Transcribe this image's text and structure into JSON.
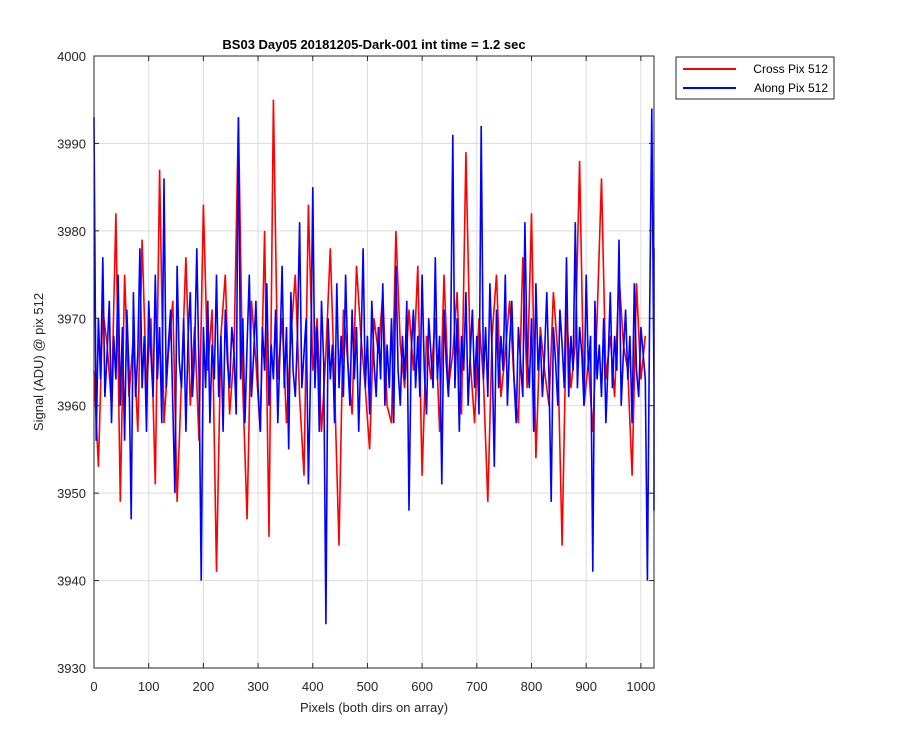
{
  "chart_data": {
    "type": "line",
    "title": "BS03 Day05 20181205-Dark-001 int time = 1.2 sec",
    "xlabel": "Pixels (both dirs on array)",
    "ylabel": "Signal (ADU) @ pix 512",
    "xlim": [
      0,
      1024
    ],
    "ylim": [
      3930,
      4000
    ],
    "xticks": [
      0,
      100,
      200,
      300,
      400,
      500,
      600,
      700,
      800,
      900,
      1000
    ],
    "yticks": [
      3930,
      3940,
      3950,
      3960,
      3970,
      3980,
      3990,
      4000
    ],
    "xtick_labels": [
      "0",
      "100",
      "200",
      "300",
      "400",
      "500",
      "600",
      "700",
      "800",
      "900",
      "1000"
    ],
    "ytick_labels": [
      "3930",
      "3940",
      "3950",
      "3960",
      "3970",
      "3980",
      "3990",
      "4000"
    ],
    "grid": true,
    "legend_position": "outside-top-right",
    "series": [
      {
        "name": "Cross Pix 512",
        "color": "#ff0000",
        "x_step": 8,
        "values": [
          3964,
          3953,
          3971,
          3967,
          3960,
          3982,
          3949,
          3975,
          3961,
          3968,
          3957,
          3979,
          3962,
          3970,
          3951,
          3987,
          3958,
          3966,
          3972,
          3949,
          3963,
          3977,
          3960,
          3969,
          3956,
          3983,
          3964,
          3971,
          3941,
          3968,
          3975,
          3959,
          3966,
          3993,
          3962,
          3947,
          3972,
          3965,
          3957,
          3980,
          3945,
          3995,
          3963,
          3970,
          3958,
          3968,
          3975,
          3961,
          3952,
          3983,
          3964,
          3970,
          3957,
          3966,
          3978,
          3962,
          3944,
          3971,
          3965,
          3959,
          3976,
          3968,
          3962,
          3955,
          3970,
          3966,
          3973,
          3960,
          3958,
          3980,
          3967,
          3962,
          3971,
          3964,
          3976,
          3952,
          3968,
          3963,
          3970,
          3957,
          3975,
          3962,
          3966,
          3973,
          3959,
          3989,
          3965,
          3958,
          3970,
          3963,
          3949,
          3968,
          3975,
          3961,
          3966,
          3972,
          3963,
          3958,
          3977,
          3962,
          3982,
          3954,
          3969,
          3964,
          3960,
          3973,
          3966,
          3944,
          3971,
          3962,
          3967,
          3988,
          3960,
          3965,
          3957,
          3970,
          3986,
          3963,
          3968,
          3961,
          3975,
          3967,
          3964,
          3952,
          3974,
          3963,
          3968
        ]
      },
      {
        "name": "Along Pix 512",
        "color": "#0000ff",
        "x_step": 4,
        "values": [
          3993,
          3956,
          3970,
          3963,
          3977,
          3961,
          3966,
          3972,
          3958,
          3968,
          3963,
          3975,
          3960,
          3969,
          3956,
          3971,
          3964,
          3947,
          3973,
          3961,
          3966,
          3978,
          3962,
          3968,
          3957,
          3972,
          3966,
          3961,
          3975,
          3963,
          3969,
          3958,
          3986,
          3962,
          3967,
          3971,
          3960,
          3950,
          3976,
          3965,
          3962,
          3970,
          3957,
          3968,
          3973,
          3961,
          3966,
          3978,
          3964,
          3940,
          3969,
          3962,
          3972,
          3958,
          3967,
          3963,
          3975,
          3961,
          3968,
          3957,
          3971,
          3965,
          3962,
          3969,
          3966,
          3959,
          3993,
          3963,
          3970,
          3958,
          3967,
          3975,
          3961,
          3966,
          3972,
          3962,
          3957,
          3969,
          3964,
          3974,
          3960,
          3967,
          3963,
          3971,
          3958,
          3966,
          3976,
          3962,
          3969,
          3955,
          3973,
          3964,
          3961,
          3968,
          3981,
          3962,
          3966,
          3970,
          3951,
          3964,
          3985,
          3962,
          3969,
          3957,
          3972,
          3965,
          3935,
          3970,
          3963,
          3967,
          3958,
          3974,
          3962,
          3968,
          3961,
          3975,
          3965,
          3960,
          3971,
          3963,
          3969,
          3957,
          3966,
          3978,
          3962,
          3968,
          3959,
          3972,
          3965,
          3961,
          3969,
          3963,
          3974,
          3960,
          3967,
          3962,
          3970,
          3958,
          3976,
          3964,
          3960,
          3968,
          3963,
          3972,
          3948,
          3966,
          3971,
          3962,
          3968,
          3961,
          3975,
          3964,
          3959,
          3970,
          3966,
          3962,
          3977,
          3963,
          3968,
          3951,
          3971,
          3965,
          3961,
          3967,
          3991,
          3962,
          3970,
          3957,
          3968,
          3964,
          3973,
          3960,
          3966,
          3971,
          3962,
          3968,
          3959,
          3992,
          3963,
          3969,
          3961,
          3974,
          3966,
          3953,
          3971,
          3962,
          3968,
          3964,
          3975,
          3960,
          3967,
          3972,
          3963,
          3958,
          3969,
          3965,
          3961,
          3981,
          3966,
          3962,
          3970,
          3957,
          3974,
          3964,
          3968,
          3961,
          3966,
          3973,
          3963,
          3949,
          3969,
          3965,
          3960,
          3971,
          3967,
          3962,
          3977,
          3961,
          3968,
          3964,
          3981,
          3962,
          3969,
          3966,
          3960,
          3975,
          3964,
          3968,
          3941,
          3972,
          3963,
          3967,
          3961,
          3970,
          3958,
          3965,
          3973,
          3962,
          3968,
          3964,
          3979,
          3960,
          3966,
          3971,
          3963,
          3968,
          3958,
          3974,
          3964,
          3961,
          3969,
          3966,
          3963,
          3940,
          3970,
          3994,
          3962,
          3968,
          3961,
          3974,
          3965,
          3960,
          3969,
          3963,
          3976,
          3961,
          3967,
          3972,
          3958,
          3968,
          3964,
          3970,
          3962,
          3966,
          3978,
          3960,
          3968,
          3963,
          3971,
          3962,
          3966,
          3958,
          3974,
          3965,
          3961,
          3969,
          3963,
          3976,
          3962,
          3967,
          3971,
          3960,
          3968,
          3964,
          3973,
          3961,
          3969,
          3965,
          3959,
          3970,
          3948
        ]
      }
    ]
  }
}
